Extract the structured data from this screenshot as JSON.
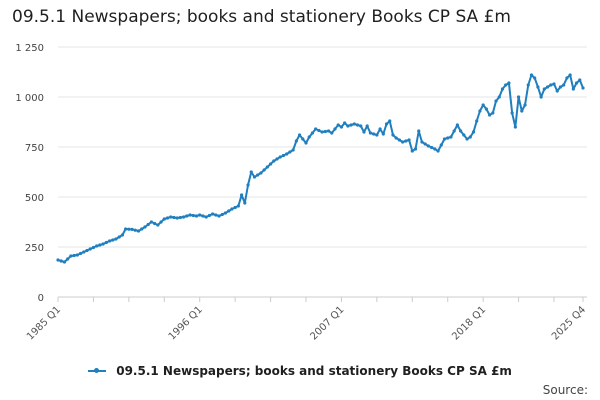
{
  "chart_data": {
    "type": "line",
    "title": "09.5.1 Newspapers; books and stationery Books CP SA £m",
    "xlabel": "",
    "ylabel": "",
    "ylim": [
      0,
      1250
    ],
    "yticks": [
      0,
      250,
      500,
      750,
      1000,
      1250
    ],
    "ytick_labels": [
      "0",
      "250",
      "500",
      "750",
      "1 000",
      "1 250"
    ],
    "x_tick_labels": [
      "1985 Q1",
      "1996 Q1",
      "2007 Q1",
      "2018 Q1",
      "2025 Q4"
    ],
    "x_tick_index": [
      0,
      44,
      88,
      132,
      163
    ],
    "grid": true,
    "legend_position": "bottom",
    "series": [
      {
        "name": "09.5.1 Newspapers; books and stationery Books CP SA £m",
        "color": "#1f7fbf",
        "keyframes": [
          [
            0,
            185
          ],
          [
            2,
            175
          ],
          [
            4,
            205
          ],
          [
            6,
            210
          ],
          [
            8,
            225
          ],
          [
            10,
            240
          ],
          [
            12,
            255
          ],
          [
            14,
            265
          ],
          [
            16,
            280
          ],
          [
            18,
            290
          ],
          [
            20,
            310
          ],
          [
            21,
            340
          ],
          [
            23,
            338
          ],
          [
            25,
            330
          ],
          [
            27,
            350
          ],
          [
            29,
            375
          ],
          [
            31,
            360
          ],
          [
            33,
            390
          ],
          [
            35,
            400
          ],
          [
            37,
            395
          ],
          [
            39,
            400
          ],
          [
            41,
            410
          ],
          [
            43,
            405
          ],
          [
            44,
            410
          ],
          [
            46,
            400
          ],
          [
            48,
            415
          ],
          [
            50,
            405
          ],
          [
            52,
            420
          ],
          [
            54,
            440
          ],
          [
            56,
            455
          ],
          [
            57,
            510
          ],
          [
            58,
            470
          ],
          [
            59,
            560
          ],
          [
            60,
            625
          ],
          [
            61,
            600
          ],
          [
            63,
            620
          ],
          [
            65,
            650
          ],
          [
            67,
            680
          ],
          [
            69,
            700
          ],
          [
            71,
            715
          ],
          [
            73,
            735
          ],
          [
            74,
            780
          ],
          [
            75,
            810
          ],
          [
            76,
            790
          ],
          [
            77,
            770
          ],
          [
            78,
            800
          ],
          [
            80,
            840
          ],
          [
            82,
            825
          ],
          [
            84,
            830
          ],
          [
            85,
            820
          ],
          [
            86,
            840
          ],
          [
            87,
            860
          ],
          [
            88,
            850
          ],
          [
            89,
            870
          ],
          [
            90,
            855
          ],
          [
            92,
            865
          ],
          [
            94,
            855
          ],
          [
            95,
            825
          ],
          [
            96,
            855
          ],
          [
            97,
            820
          ],
          [
            99,
            810
          ],
          [
            100,
            840
          ],
          [
            101,
            815
          ],
          [
            102,
            865
          ],
          [
            103,
            880
          ],
          [
            104,
            810
          ],
          [
            105,
            795
          ],
          [
            107,
            775
          ],
          [
            109,
            785
          ],
          [
            110,
            730
          ],
          [
            111,
            740
          ],
          [
            112,
            830
          ],
          [
            113,
            775
          ],
          [
            115,
            755
          ],
          [
            117,
            740
          ],
          [
            118,
            730
          ],
          [
            120,
            790
          ],
          [
            122,
            800
          ],
          [
            124,
            860
          ],
          [
            125,
            830
          ],
          [
            126,
            810
          ],
          [
            127,
            790
          ],
          [
            128,
            800
          ],
          [
            129,
            825
          ],
          [
            130,
            880
          ],
          [
            131,
            930
          ],
          [
            132,
            960
          ],
          [
            133,
            940
          ],
          [
            134,
            910
          ],
          [
            135,
            920
          ],
          [
            136,
            980
          ],
          [
            137,
            1000
          ],
          [
            138,
            1040
          ],
          [
            139,
            1060
          ],
          [
            140,
            1070
          ],
          [
            141,
            920
          ],
          [
            142,
            850
          ],
          [
            143,
            1000
          ],
          [
            144,
            930
          ],
          [
            145,
            960
          ],
          [
            146,
            1060
          ],
          [
            147,
            1110
          ],
          [
            148,
            1095
          ],
          [
            149,
            1050
          ],
          [
            150,
            1000
          ],
          [
            151,
            1040
          ],
          [
            152,
            1050
          ],
          [
            153,
            1060
          ],
          [
            154,
            1065
          ],
          [
            155,
            1030
          ],
          [
            156,
            1050
          ],
          [
            157,
            1060
          ],
          [
            158,
            1095
          ],
          [
            159,
            1110
          ],
          [
            160,
            1040
          ],
          [
            161,
            1070
          ],
          [
            162,
            1085
          ],
          [
            163,
            1045
          ]
        ]
      }
    ]
  },
  "legend": {
    "label": "09.5.1 Newspapers; books and stationery Books CP SA £m",
    "color": "#1f7fbf"
  },
  "source_label": "Source:"
}
